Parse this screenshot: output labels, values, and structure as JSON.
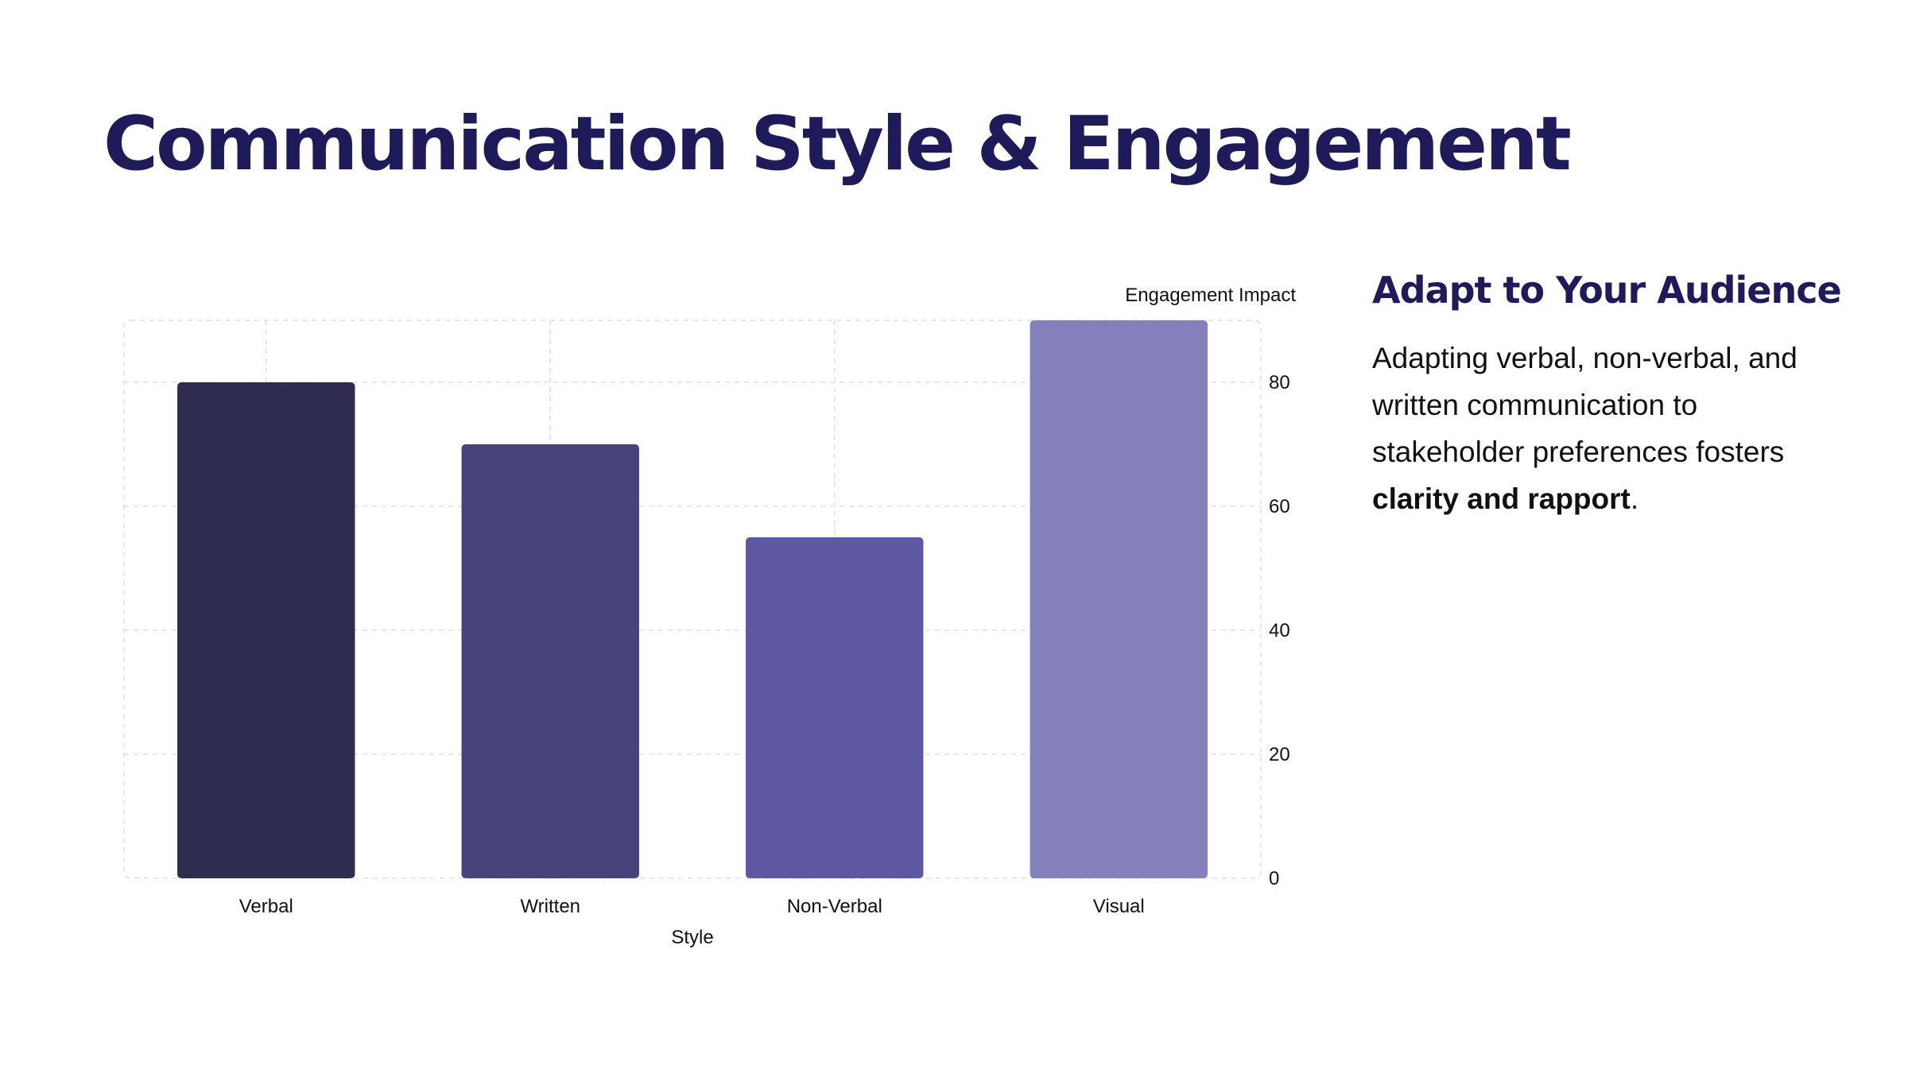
{
  "slide": {
    "title": "Communication Style & Engagement"
  },
  "panel": {
    "heading": "Adapt to Your Audience",
    "body_lead": "Adapting verbal, non-verbal, and written communication to stakeholder preferences fosters ",
    "body_bold": "clarity and rapport",
    "body_tail": "."
  },
  "chart_data": {
    "type": "bar",
    "categories": [
      "Verbal",
      "Written",
      "Non-Verbal",
      "Visual"
    ],
    "values": [
      80,
      70,
      55,
      90
    ],
    "title": "",
    "xlabel": "Style",
    "ylabel": "Engagement Impact",
    "ylim": [
      0,
      90
    ],
    "yticks": [
      0,
      20,
      40,
      60,
      80
    ],
    "y_axis_position": "right",
    "grid": true,
    "grid_style": "dashed",
    "colors": [
      "#2f2d4f",
      "#46447b",
      "#5e57a1",
      "#8380bb"
    ],
    "grid_color": "#dddddd"
  }
}
